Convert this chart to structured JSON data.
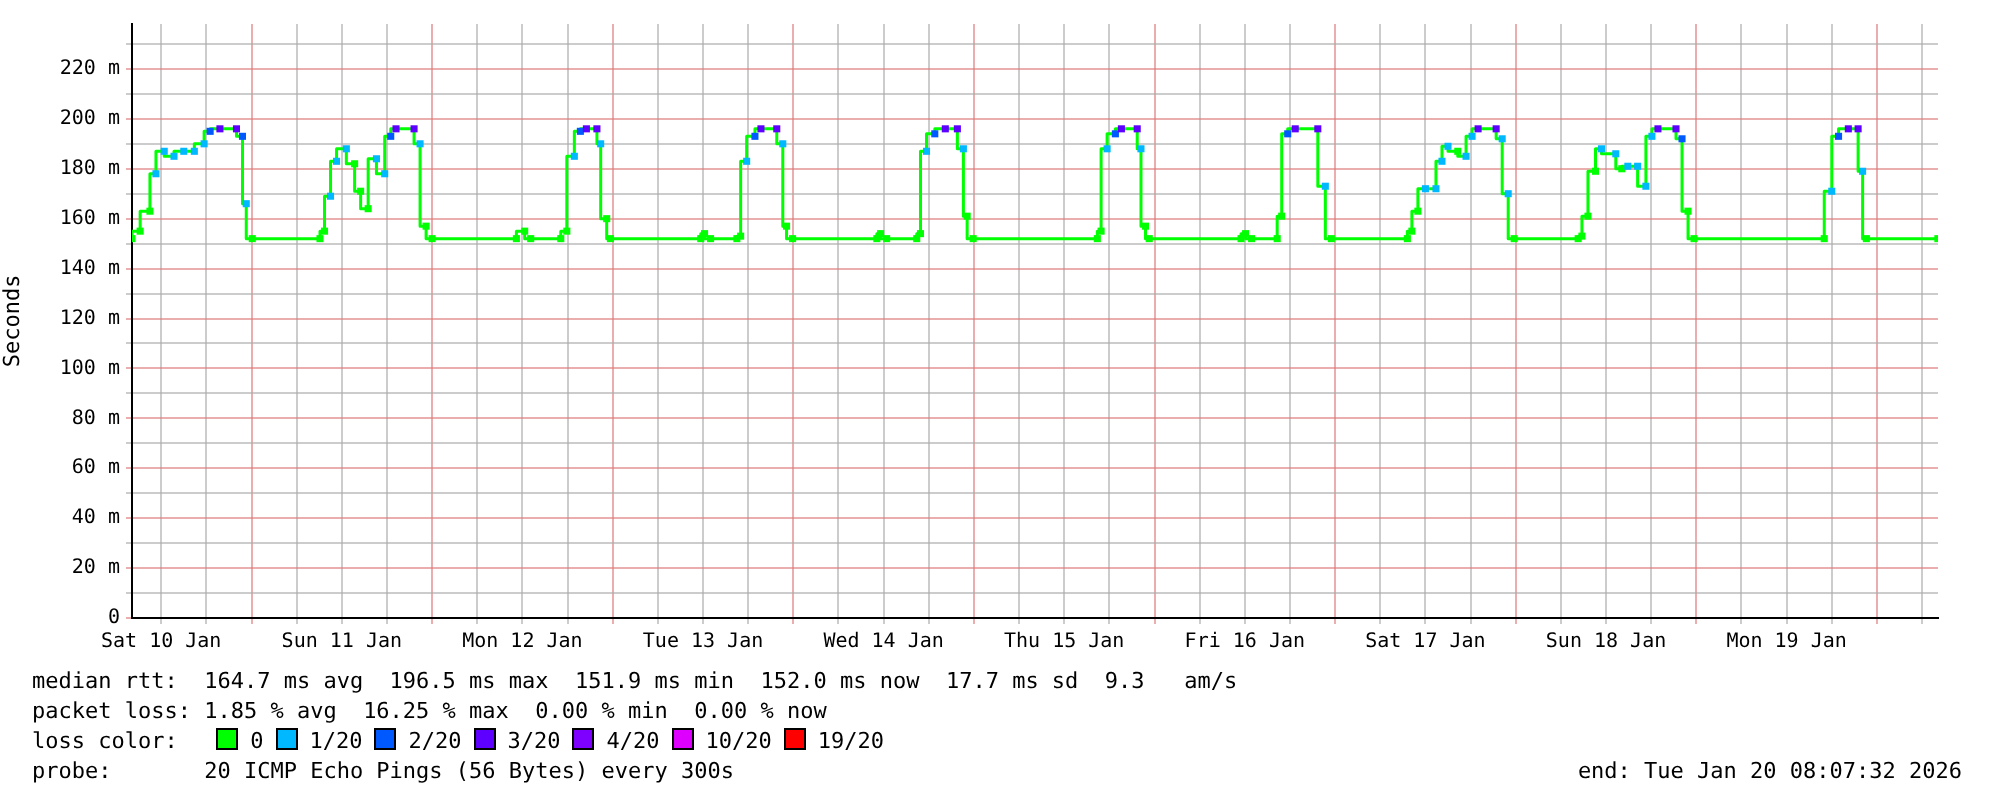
{
  "chart_data": {
    "type": "step",
    "ylabel": "Seconds",
    "legend_title": "loss color:",
    "legend": "bottom",
    "grid": true,
    "marker": "square",
    "line_style": "solid",
    "xlim": [
      "2026-01-10T08:07",
      "2026-01-20T08:07"
    ],
    "ylim": [
      0,
      238
    ],
    "xticks": [
      {
        "value": "2026-01-10T12:00",
        "label": "Sat 10 Jan"
      },
      {
        "value": "2026-01-10T18:00",
        "label": null
      },
      {
        "value": "2026-01-11T00:00",
        "label": null
      },
      {
        "value": "2026-01-11T06:00",
        "label": null
      },
      {
        "value": "2026-01-11T12:00",
        "label": "Sun 11 Jan"
      },
      {
        "value": "2026-01-11T18:00",
        "label": null
      },
      {
        "value": "2026-01-12T00:00",
        "label": null
      },
      {
        "value": "2026-01-12T06:00",
        "label": null
      },
      {
        "value": "2026-01-12T12:00",
        "label": "Mon 12 Jan"
      },
      {
        "value": "2026-01-12T18:00",
        "label": null
      },
      {
        "value": "2026-01-13T00:00",
        "label": null
      },
      {
        "value": "2026-01-13T06:00",
        "label": null
      },
      {
        "value": "2026-01-13T12:00",
        "label": "Tue 13 Jan"
      },
      {
        "value": "2026-01-13T18:00",
        "label": null
      },
      {
        "value": "2026-01-14T00:00",
        "label": null
      },
      {
        "value": "2026-01-14T06:00",
        "label": null
      },
      {
        "value": "2026-01-14T12:00",
        "label": "Wed 14 Jan"
      },
      {
        "value": "2026-01-14T18:00",
        "label": null
      },
      {
        "value": "2026-01-15T00:00",
        "label": null
      },
      {
        "value": "2026-01-15T06:00",
        "label": null
      },
      {
        "value": "2026-01-15T12:00",
        "label": "Thu 15 Jan"
      },
      {
        "value": "2026-01-15T18:00",
        "label": null
      },
      {
        "value": "2026-01-16T00:00",
        "label": null
      },
      {
        "value": "2026-01-16T06:00",
        "label": null
      },
      {
        "value": "2026-01-16T12:00",
        "label": "Fri 16 Jan"
      },
      {
        "value": "2026-01-16T18:00",
        "label": null
      },
      {
        "value": "2026-01-17T00:00",
        "label": null
      },
      {
        "value": "2026-01-17T06:00",
        "label": null
      },
      {
        "value": "2026-01-17T12:00",
        "label": "Sat 17 Jan"
      },
      {
        "value": "2026-01-17T18:00",
        "label": null
      },
      {
        "value": "2026-01-18T00:00",
        "label": null
      },
      {
        "value": "2026-01-18T06:00",
        "label": null
      },
      {
        "value": "2026-01-18T12:00",
        "label": "Sun 18 Jan"
      },
      {
        "value": "2026-01-18T18:00",
        "label": null
      },
      {
        "value": "2026-01-19T00:00",
        "label": null
      },
      {
        "value": "2026-01-19T06:00",
        "label": null
      },
      {
        "value": "2026-01-19T12:00",
        "label": "Mon 19 Jan"
      },
      {
        "value": "2026-01-19T18:00",
        "label": null
      },
      {
        "value": "2026-01-20T00:00",
        "label": null
      },
      {
        "value": "2026-01-20T06:00",
        "label": null
      }
    ],
    "yticks": [
      0,
      {
        "value": 10,
        "label": null
      },
      {
        "value": 20,
        "label": "20 m"
      },
      {
        "value": 30,
        "label": null
      },
      {
        "value": 40,
        "label": "40 m"
      },
      {
        "value": 50,
        "label": null
      },
      {
        "value": 60,
        "label": "60 m"
      },
      {
        "value": 70,
        "label": null
      },
      {
        "value": 80,
        "label": "80 m"
      },
      {
        "value": 90,
        "label": null
      },
      {
        "value": 100,
        "label": "100 m"
      },
      {
        "value": 110,
        "label": null
      },
      {
        "value": 120,
        "label": "120 m"
      },
      {
        "value": 130,
        "label": null
      },
      {
        "value": 140,
        "label": "140 m"
      },
      {
        "value": 150,
        "label": null
      },
      {
        "value": 160,
        "label": "160 m"
      },
      {
        "value": 170,
        "label": null
      },
      {
        "value": 180,
        "label": "180 m"
      },
      {
        "value": 190,
        "label": null
      },
      {
        "value": 200,
        "label": "200 m"
      },
      {
        "value": 210,
        "label": null
      },
      {
        "value": 220,
        "label": "220 m"
      },
      {
        "value": 230,
        "label": null
      }
    ],
    "series": [
      {
        "color": "#00ff00",
        "x": [
          "2026-01-10T08:07",
          "2026-01-10T09:12",
          "2026-01-10T10:30",
          "2026-01-10T11:18",
          "2026-01-10T12:24",
          "2026-01-10T13:42",
          "2026-01-10T15:00",
          "2026-01-10T16:24",
          "2026-01-10T17:42",
          "2026-01-10T18:30",
          "2026-01-10T19:48",
          "2026-01-10T22:00",
          "2026-01-10T22:48",
          "2026-01-10T23:18",
          "2026-01-11T00:06",
          "2026-01-11T09:06",
          "2026-01-11T09:42",
          "2026-01-11T10:30",
          "2026-01-11T11:18",
          "2026-01-11T12:36",
          "2026-01-11T13:42",
          "2026-01-11T14:30",
          "2026-01-11T15:30",
          "2026-01-11T16:36",
          "2026-01-11T17:42",
          "2026-01-11T18:30",
          "2026-01-11T19:12",
          "2026-01-11T21:36",
          "2026-01-11T22:24",
          "2026-01-11T23:12",
          "2026-01-12T00:00",
          "2026-01-12T11:12",
          "2026-01-12T12:18",
          "2026-01-12T13:06",
          "2026-01-12T17:06",
          "2026-01-12T17:54",
          "2026-01-12T18:54",
          "2026-01-12T19:42",
          "2026-01-12T20:30",
          "2026-01-12T21:54",
          "2026-01-12T22:24",
          "2026-01-12T23:12",
          "2026-01-12T23:42",
          "2026-01-13T11:42",
          "2026-01-13T12:12",
          "2026-01-13T13:00",
          "2026-01-13T16:30",
          "2026-01-13T17:00",
          "2026-01-13T17:48",
          "2026-01-13T18:54",
          "2026-01-13T19:42",
          "2026-01-13T21:48",
          "2026-01-13T22:36",
          "2026-01-13T23:06",
          "2026-01-13T23:54",
          "2026-01-14T11:06",
          "2026-01-14T11:36",
          "2026-01-14T12:24",
          "2026-01-14T16:24",
          "2026-01-14T16:54",
          "2026-01-14T17:42",
          "2026-01-14T18:48",
          "2026-01-14T20:12",
          "2026-01-14T21:48",
          "2026-01-14T22:36",
          "2026-01-14T23:06",
          "2026-01-14T23:54",
          "2026-01-15T16:24",
          "2026-01-15T16:54",
          "2026-01-15T17:42",
          "2026-01-15T18:48",
          "2026-01-15T19:36",
          "2026-01-15T21:42",
          "2026-01-15T22:12",
          "2026-01-15T22:48",
          "2026-01-15T23:18",
          "2026-01-16T11:30",
          "2026-01-16T12:06",
          "2026-01-16T12:54",
          "2026-01-16T16:18",
          "2026-01-16T16:54",
          "2026-01-16T17:42",
          "2026-01-16T18:42",
          "2026-01-16T21:42",
          "2026-01-16T22:42",
          "2026-01-16T23:30",
          "2026-01-17T09:36",
          "2026-01-17T10:12",
          "2026-01-17T11:00",
          "2026-01-17T12:00",
          "2026-01-17T13:24",
          "2026-01-17T14:12",
          "2026-01-17T15:00",
          "2026-01-17T16:18",
          "2026-01-17T17:24",
          "2026-01-17T18:12",
          "2026-01-17T19:00",
          "2026-01-17T21:24",
          "2026-01-17T22:12",
          "2026-01-17T23:00",
          "2026-01-17T23:48",
          "2026-01-18T08:18",
          "2026-01-18T08:48",
          "2026-01-18T09:36",
          "2026-01-18T10:36",
          "2026-01-18T11:24",
          "2026-01-18T13:18",
          "2026-01-18T14:06",
          "2026-01-18T14:54",
          "2026-01-18T16:12",
          "2026-01-18T17:18",
          "2026-01-18T18:06",
          "2026-01-18T18:54",
          "2026-01-18T21:18",
          "2026-01-18T22:06",
          "2026-01-18T22:54",
          "2026-01-18T23:42",
          "2026-01-19T17:00",
          "2026-01-19T18:00",
          "2026-01-19T18:54",
          "2026-01-19T20:12",
          "2026-01-19T21:30",
          "2026-01-19T22:06",
          "2026-01-19T22:36",
          "2026-01-20T08:06"
        ],
        "values": [
          152,
          155,
          163,
          178,
          187,
          185,
          187,
          187,
          190,
          195,
          196,
          196,
          193,
          166,
          152,
          152,
          155,
          169,
          183,
          188,
          182,
          171,
          164,
          184,
          178,
          193,
          196,
          196,
          190,
          157,
          152,
          152,
          155,
          152,
          152,
          155,
          185,
          195,
          196,
          196,
          190,
          160,
          152,
          152,
          154,
          152,
          152,
          153,
          183,
          193,
          196,
          196,
          190,
          157,
          152,
          152,
          154,
          152,
          152,
          154,
          187,
          194,
          196,
          196,
          188,
          161,
          152,
          152,
          155,
          188,
          194,
          196,
          196,
          188,
          157,
          152,
          152,
          154,
          152,
          152,
          161,
          194,
          196,
          196,
          173,
          152,
          152,
          155,
          163,
          172,
          172,
          183,
          189,
          187,
          185,
          193,
          196,
          196,
          192,
          170,
          152,
          152,
          153,
          161,
          179,
          188,
          186,
          180,
          181,
          181,
          173,
          193,
          196,
          196,
          192,
          163,
          152,
          152,
          171,
          193,
          196,
          196,
          179,
          152,
          152
        ],
        "colors": [
          "#00ff00",
          "#00ff00",
          "#00ff00",
          "#00b8ff",
          "#00b8ff",
          "#00b8ff",
          "#00b8ff",
          "#00b8ff",
          "#00b8ff",
          "#0059ff",
          "#5e00ff",
          "#5e00ff",
          "#0059ff",
          "#00b8ff",
          "#00ff00",
          "#00ff00",
          "#00ff00",
          "#00b8ff",
          "#00b8ff",
          "#00b8ff",
          "#00ff00",
          "#00ff00",
          "#00ff00",
          "#00b8ff",
          "#00b8ff",
          "#0059ff",
          "#5e00ff",
          "#5e00ff",
          "#00b8ff",
          "#00ff00",
          "#00ff00",
          "#00ff00",
          "#00ff00",
          "#00ff00",
          "#00ff00",
          "#00ff00",
          "#00b8ff",
          "#0059ff",
          "#5e00ff",
          "#5e00ff",
          "#00b8ff",
          "#00ff00",
          "#00ff00",
          "#00ff00",
          "#00ff00",
          "#00ff00",
          "#00ff00",
          "#00ff00",
          "#00b8ff",
          "#0059ff",
          "#5e00ff",
          "#5e00ff",
          "#00b8ff",
          "#00ff00",
          "#00ff00",
          "#00ff00",
          "#00ff00",
          "#00ff00",
          "#00ff00",
          "#00ff00",
          "#00b8ff",
          "#0059ff",
          "#5e00ff",
          "#5e00ff",
          "#00b8ff",
          "#00ff00",
          "#00ff00",
          "#00ff00",
          "#00ff00",
          "#00b8ff",
          "#0059ff",
          "#5e00ff",
          "#5e00ff",
          "#00b8ff",
          "#00ff00",
          "#00ff00",
          "#00ff00",
          "#00ff00",
          "#00ff00",
          "#00ff00",
          "#00ff00",
          "#0059ff",
          "#5e00ff",
          "#5e00ff",
          "#00b8ff",
          "#00ff00",
          "#00ff00",
          "#00ff00",
          "#00ff00",
          "#00b8ff",
          "#00b8ff",
          "#00b8ff",
          "#00b8ff",
          "#00ff00",
          "#00b8ff",
          "#00b8ff",
          "#5e00ff",
          "#5e00ff",
          "#00b8ff",
          "#00b8ff",
          "#00ff00",
          "#00ff00",
          "#00ff00",
          "#00ff00",
          "#00ff00",
          "#00b8ff",
          "#00b8ff",
          "#00ff00",
          "#00b8ff",
          "#00b8ff",
          "#00b8ff",
          "#00b8ff",
          "#5e00ff",
          "#5e00ff",
          "#0059ff",
          "#00ff00",
          "#00ff00",
          "#00ff00",
          "#00b8ff",
          "#0059ff",
          "#5e00ff",
          "#5e00ff",
          "#00b8ff",
          "#00ff00",
          "#00ff00"
        ]
      },
      {
        "name": "0",
        "color": "#00ff00"
      },
      {
        "name": "1/20",
        "color": "#00b8ff"
      },
      {
        "name": "2/20",
        "color": "#0059ff"
      },
      {
        "name": "3/20",
        "color": "#5e00ff"
      },
      {
        "name": "4/20",
        "color": "#7e00ff"
      },
      {
        "name": "10/20",
        "color": "#dd00ff"
      },
      {
        "name": "19/20",
        "color": "#ff0000"
      }
    ],
    "annotations": [
      "median rtt:  164.7 ms avg  196.5 ms max  151.9 ms min  152.0 ms now  17.7 ms sd  9.3   am/s",
      "packet loss: 1.85 % avg  16.25 % max  0.00 % min  0.00 % now",
      "probe:       20 ICMP Echo Pings (56 Bytes) every 300s",
      "end: Tue Jan 20 08:07:32 2026"
    ]
  }
}
